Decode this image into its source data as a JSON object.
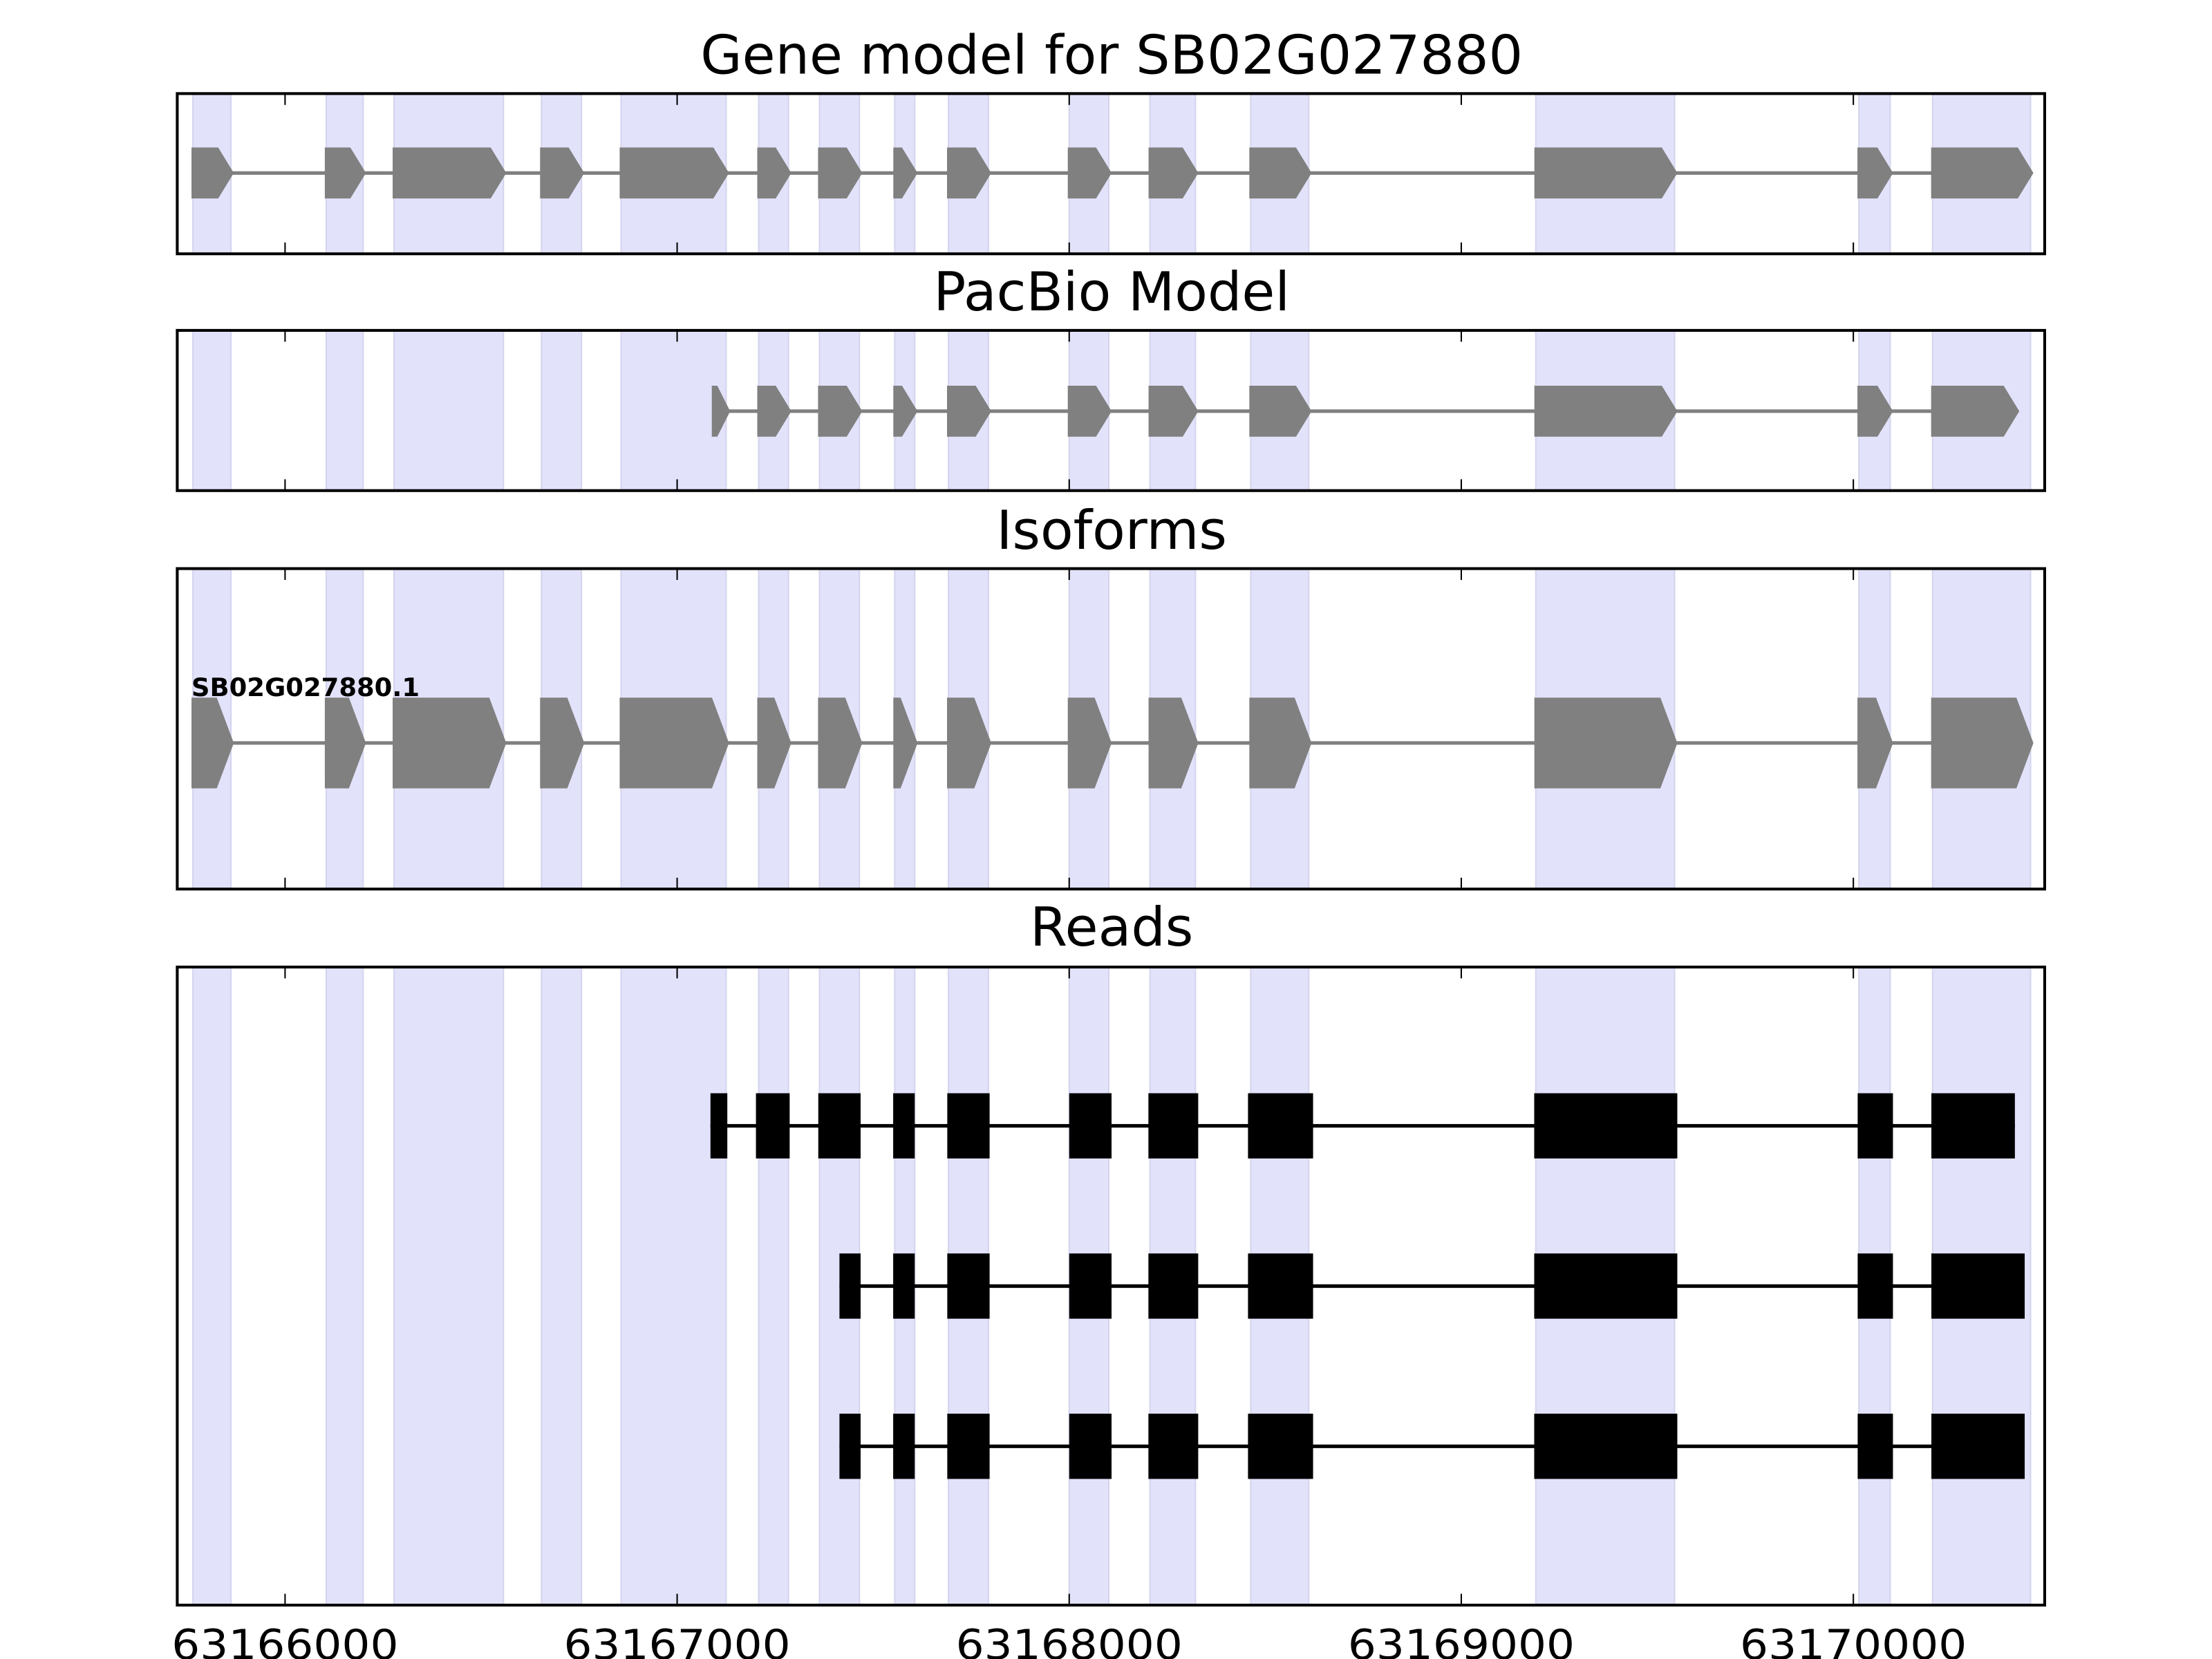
{
  "chart_data": {
    "type": "gene-track",
    "xlim": [
      63165725,
      63170488
    ],
    "xticks": [
      63166000,
      63167000,
      63168000,
      63169000,
      63170000
    ],
    "xtick_labels": [
      "63166000",
      "63167000",
      "63168000",
      "63169000",
      "63170000"
    ],
    "colors": {
      "shade": "#e2e2fb",
      "shade_edge": "#d4d4ee",
      "exon_model": "#808080",
      "read": "#000000"
    },
    "panels": [
      {
        "title": "Gene model for SB02G027880"
      },
      {
        "title": "PacBio Model"
      },
      {
        "title": "Isoforms",
        "isoform_label": "SB02G027880.1"
      },
      {
        "title": "Reads"
      }
    ],
    "exon_regions": [
      [
        63165765,
        63165862
      ],
      [
        63166105,
        63166199
      ],
      [
        63166278,
        63166557
      ],
      [
        63166654,
        63166756
      ],
      [
        63166857,
        63167125
      ],
      [
        63167208,
        63167284
      ],
      [
        63167363,
        63167465
      ],
      [
        63167555,
        63167606
      ],
      [
        63167692,
        63167794
      ],
      [
        63168000,
        63168101
      ],
      [
        63168206,
        63168322
      ],
      [
        63168463,
        63168611
      ],
      [
        63169190,
        63169544
      ],
      [
        63170014,
        63170094
      ],
      [
        63170202,
        63170452
      ]
    ],
    "pacbio_model": [
      [
        63167092,
        63167128
      ],
      [
        63167208,
        63167284
      ],
      [
        63167363,
        63167465
      ],
      [
        63167555,
        63167606
      ],
      [
        63167692,
        63167794
      ],
      [
        63168000,
        63168101
      ],
      [
        63168206,
        63168322
      ],
      [
        63168463,
        63168611
      ],
      [
        63169190,
        63169544
      ],
      [
        63170014,
        63170094
      ],
      [
        63170202,
        63170416
      ]
    ],
    "reads": [
      [
        [
          63167085,
          63167128
        ],
        [
          63167201,
          63167287
        ],
        [
          63167360,
          63167468
        ],
        [
          63167551,
          63167606
        ],
        [
          63167689,
          63167797
        ],
        [
          63168000,
          63168108
        ],
        [
          63168202,
          63168329
        ],
        [
          63168456,
          63168622
        ],
        [
          63169186,
          63169551
        ],
        [
          63170011,
          63170101
        ],
        [
          63170199,
          63170412
        ]
      ],
      [
        [
          63167414,
          63167468
        ],
        [
          63167551,
          63167606
        ],
        [
          63167689,
          63167797
        ],
        [
          63168000,
          63168108
        ],
        [
          63168202,
          63168329
        ],
        [
          63168456,
          63168622
        ],
        [
          63169186,
          63169551
        ],
        [
          63170011,
          63170101
        ],
        [
          63170199,
          63170437
        ]
      ],
      [
        [
          63167414,
          63167468
        ],
        [
          63167551,
          63167606
        ],
        [
          63167689,
          63167797
        ],
        [
          63168000,
          63168108
        ],
        [
          63168202,
          63168329
        ],
        [
          63168456,
          63168622
        ],
        [
          63169186,
          63169551
        ],
        [
          63170011,
          63170101
        ],
        [
          63170199,
          63170437
        ]
      ]
    ]
  }
}
